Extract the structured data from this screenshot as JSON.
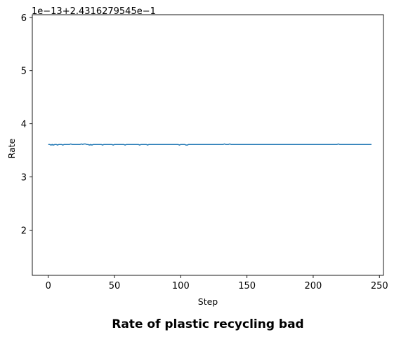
{
  "chart_data": {
    "type": "line",
    "title": "Rate of plastic recycling bad",
    "xlabel": "Step",
    "ylabel": "Rate",
    "y_offset_text": "1e−13+2.4316279545e−1",
    "xlim": [
      -12.05,
      253.05
    ],
    "ylim": [
      1.15,
      6.05
    ],
    "x_ticks": [
      0,
      50,
      100,
      150,
      200,
      250
    ],
    "y_ticks": [
      2,
      3,
      4,
      5,
      6
    ],
    "grid": false,
    "line_color": "#1f77b4",
    "series": [
      {
        "values": [
          3.61,
          3.61,
          3.6,
          3.61,
          3.6,
          3.61,
          3.61,
          3.6,
          3.61,
          3.61,
          3.61,
          3.6,
          3.61,
          3.61,
          3.61,
          3.61,
          3.61,
          3.62,
          3.61,
          3.61,
          3.61,
          3.61,
          3.61,
          3.61,
          3.61,
          3.62,
          3.61,
          3.62,
          3.62,
          3.61,
          3.61,
          3.6,
          3.61,
          3.6,
          3.61,
          3.61,
          3.61,
          3.61,
          3.61,
          3.61,
          3.61,
          3.6,
          3.61,
          3.61,
          3.61,
          3.61,
          3.61,
          3.61,
          3.61,
          3.6,
          3.61,
          3.61,
          3.61,
          3.61,
          3.61,
          3.61,
          3.61,
          3.61,
          3.6,
          3.61,
          3.61,
          3.61,
          3.61,
          3.61,
          3.61,
          3.61,
          3.61,
          3.61,
          3.61,
          3.6,
          3.61,
          3.61,
          3.61,
          3.61,
          3.61,
          3.6,
          3.61,
          3.61,
          3.61,
          3.61,
          3.61,
          3.61,
          3.61,
          3.61,
          3.61,
          3.61,
          3.61,
          3.61,
          3.61,
          3.61,
          3.61,
          3.61,
          3.61,
          3.61,
          3.61,
          3.61,
          3.61,
          3.61,
          3.61,
          3.6,
          3.61,
          3.61,
          3.61,
          3.61,
          3.6,
          3.6,
          3.61,
          3.61,
          3.61,
          3.61,
          3.61,
          3.61,
          3.61,
          3.61,
          3.61,
          3.61,
          3.61,
          3.61,
          3.61,
          3.61,
          3.61,
          3.61,
          3.61,
          3.61,
          3.61,
          3.61,
          3.61,
          3.61,
          3.61,
          3.61,
          3.61,
          3.61,
          3.61,
          3.62,
          3.61,
          3.61,
          3.61,
          3.62,
          3.61,
          3.61,
          3.61,
          3.61,
          3.61,
          3.61,
          3.61,
          3.61,
          3.61,
          3.61,
          3.61,
          3.61,
          3.61,
          3.61,
          3.61,
          3.61,
          3.61,
          3.61,
          3.61,
          3.61,
          3.61,
          3.61,
          3.61,
          3.61,
          3.61,
          3.61,
          3.61,
          3.61,
          3.61,
          3.61,
          3.61,
          3.61,
          3.61,
          3.61,
          3.61,
          3.61,
          3.61,
          3.61,
          3.61,
          3.61,
          3.61,
          3.61,
          3.61,
          3.61,
          3.61,
          3.61,
          3.61,
          3.61,
          3.61,
          3.61,
          3.61,
          3.61,
          3.61,
          3.61,
          3.61,
          3.61,
          3.61,
          3.61,
          3.61,
          3.61,
          3.61,
          3.61,
          3.61,
          3.61,
          3.61,
          3.61,
          3.61,
          3.61,
          3.61,
          3.61,
          3.61,
          3.61,
          3.61,
          3.61,
          3.61,
          3.61,
          3.61,
          3.61,
          3.61,
          3.61,
          3.61,
          3.62,
          3.61,
          3.61,
          3.61,
          3.61,
          3.61,
          3.61,
          3.61,
          3.61,
          3.61,
          3.61,
          3.61,
          3.61,
          3.61,
          3.61,
          3.61,
          3.61,
          3.61,
          3.61,
          3.61,
          3.61,
          3.61,
          3.61,
          3.61,
          3.61,
          3.61
        ]
      }
    ]
  }
}
